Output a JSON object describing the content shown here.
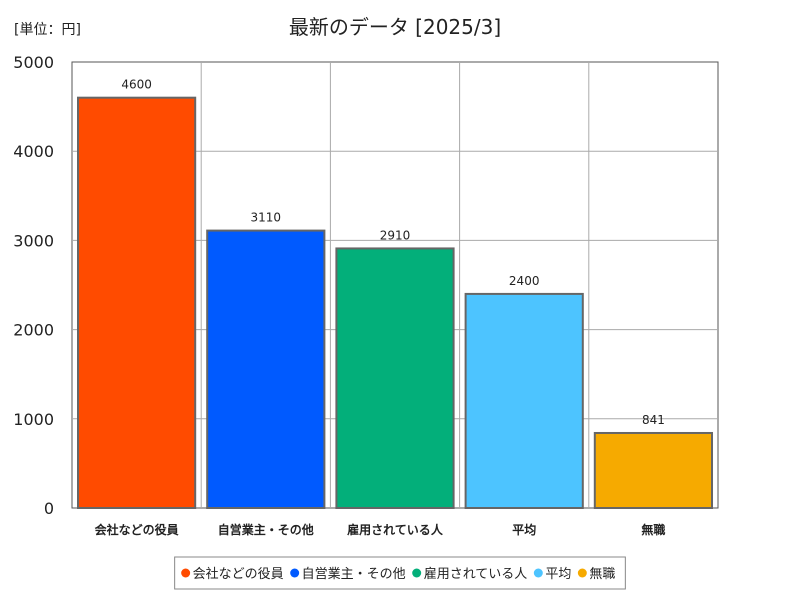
{
  "chart_data": {
    "type": "bar",
    "title": "最新のデータ [2025/3]",
    "unit_label": "[単位：円]",
    "categories": [
      "会社などの役員",
      "自営業主・その他",
      "雇用されている人",
      "平均",
      "無職"
    ],
    "values": [
      4600,
      3110,
      2910,
      2400,
      841
    ],
    "value_labels": [
      "4600",
      "3110",
      "2910",
      "2400",
      "841"
    ],
    "colors": [
      "#ff4b00",
      "#005aff",
      "#03af7a",
      "#4dc4ff",
      "#f6aa00"
    ],
    "ylim": [
      0,
      5000
    ],
    "yticks": [
      0,
      1000,
      2000,
      3000,
      4000,
      5000
    ],
    "ytick_labels": [
      "0",
      "1000",
      "2000",
      "3000",
      "4000",
      "5000"
    ],
    "grid": true,
    "legend": {
      "position": "bottom",
      "entries": [
        "会社などの役員",
        "自営業主・その他",
        "雇用されている人",
        "平均",
        "無職"
      ]
    },
    "xlabel": "",
    "ylabel": ""
  }
}
